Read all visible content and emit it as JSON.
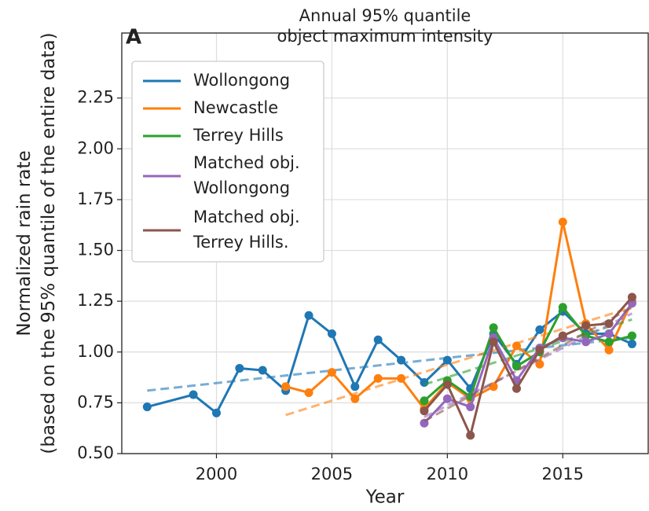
{
  "chart_data": {
    "type": "line",
    "panel_label": "A",
    "title": "Annual 95% quantile\nobject maximum intensity",
    "xlabel": "Year",
    "ylabel": "Normalized rain rate\n(based on the 95% quantile of the entire data)",
    "xlim": [
      1995.9,
      2018.7
    ],
    "xticks": [
      2000,
      2005,
      2010,
      2015
    ],
    "ylim": [
      0.5,
      2.57
    ],
    "yticks": [
      {
        "value": 0.5,
        "label": "0.50"
      },
      0.75,
      {
        "value": 1.0,
        "label": "1.00"
      },
      1.25,
      {
        "value": 1.5,
        "label": "1.50"
      },
      1.75,
      {
        "value": 2.0,
        "label": "2.00"
      },
      2.25
    ],
    "grid": true,
    "legend": "upper left",
    "series": [
      {
        "name": "Wollongong",
        "color": "#1f77b4",
        "x": [
          1997,
          1999,
          2000,
          2001,
          2002,
          2003,
          2004,
          2005,
          2006,
          2007,
          2008,
          2009,
          2010,
          2011,
          2012,
          2013,
          2014,
          2015,
          2016,
          2017,
          2018
        ],
        "values": [
          0.73,
          0.79,
          0.7,
          0.92,
          0.91,
          0.81,
          1.18,
          1.09,
          0.83,
          1.06,
          0.96,
          0.85,
          0.96,
          0.82,
          1.09,
          0.94,
          1.11,
          1.2,
          1.09,
          1.09,
          1.04
        ],
        "trend": {
          "x": [
            1997,
            2018
          ],
          "values": [
            0.81,
            1.07
          ]
        }
      },
      {
        "name": "Newcastle",
        "color": "#ff7f0e",
        "x": [
          2003,
          2004,
          2005,
          2006,
          2007,
          2008,
          2009,
          2010,
          2011,
          2012,
          2013,
          2014,
          2015,
          2016,
          2017,
          2018
        ],
        "values": [
          0.83,
          0.8,
          0.9,
          0.77,
          0.87,
          0.87,
          0.72,
          0.85,
          0.77,
          0.83,
          1.03,
          0.94,
          1.64,
          1.14,
          1.01,
          1.25
        ],
        "trend": {
          "x": [
            2003,
            2018
          ],
          "values": [
            0.69,
            1.22
          ]
        }
      },
      {
        "name": "Terrey Hills",
        "color": "#2ca02c",
        "x": [
          2009,
          2010,
          2011,
          2012,
          2013,
          2014,
          2015,
          2016,
          2017,
          2018
        ],
        "values": [
          0.76,
          0.86,
          0.78,
          1.12,
          0.93,
          1.0,
          1.22,
          1.08,
          1.05,
          1.08
        ],
        "trend": {
          "x": [
            2009,
            2018
          ],
          "values": [
            0.84,
            1.16
          ]
        }
      },
      {
        "name": "Matched obj.\nWollongong",
        "color": "#9467bd",
        "x": [
          2009,
          2010,
          2011,
          2012,
          2013,
          2014,
          2015,
          2016,
          2017,
          2018
        ],
        "values": [
          0.65,
          0.77,
          0.73,
          1.07,
          0.86,
          1.02,
          1.07,
          1.05,
          1.09,
          1.24
        ],
        "trend": {
          "x": [
            2009,
            2018
          ],
          "values": [
            0.68,
            1.19
          ]
        }
      },
      {
        "name": "Matched obj.\nTerrey Hills.",
        "color": "#8c564b",
        "x": [
          2009,
          2010,
          2011,
          2012,
          2013,
          2014,
          2015,
          2016,
          2017,
          2018
        ],
        "values": [
          0.71,
          0.84,
          0.59,
          1.05,
          0.82,
          1.01,
          1.08,
          1.13,
          1.14,
          1.27
        ],
        "trend": {
          "x": [
            2009,
            2018
          ],
          "values": [
            0.66,
            1.22
          ]
        }
      }
    ]
  }
}
